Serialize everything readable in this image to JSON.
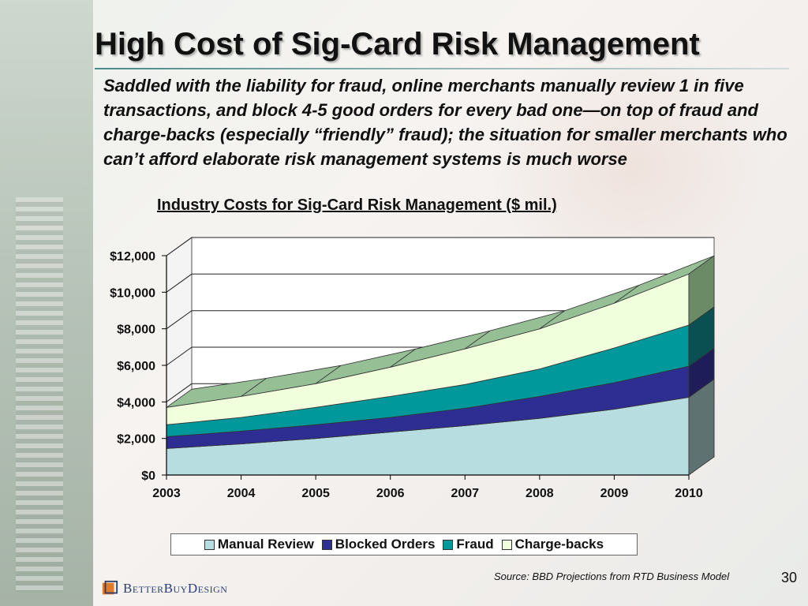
{
  "slide": {
    "title": "High Cost of Sig-Card Risk Management",
    "body": "Saddled with the liability for fraud, online merchants manually review 1 in five transactions, and block 4-5 good orders for every bad one—on top of fraud and charge-backs (especially “friendly” fraud); the situation for smaller merchants who can’t afford elaborate risk management systems is much worse",
    "source": "Source: BBD Projections from RTD Business Model",
    "page_number": "30",
    "logo_text": "BetterBuyDesign"
  },
  "chart_data": {
    "type": "area",
    "stacked": true,
    "three_d": true,
    "title": "Industry Costs for Sig-Card Risk Management ($ mil.)",
    "categories": [
      "2003",
      "2004",
      "2005",
      "2006",
      "2007",
      "2008",
      "2009",
      "2010"
    ],
    "ylim": [
      0,
      12000
    ],
    "yticks": [
      0,
      2000,
      4000,
      6000,
      8000,
      10000,
      12000
    ],
    "ytick_labels": [
      "$0",
      "$2,000",
      "$4,000",
      "$6,000",
      "$8,000",
      "$10,000",
      "$12,000"
    ],
    "grid": true,
    "legend_position": "bottom",
    "series": [
      {
        "name": "Manual Review",
        "color": "#b8dde0",
        "side_color": "#5f7272",
        "values": [
          1450,
          1700,
          2000,
          2350,
          2700,
          3100,
          3600,
          4250
        ]
      },
      {
        "name": "Blocked Orders",
        "color": "#2e2d91",
        "side_color": "#1e1d5a",
        "values": [
          650,
          700,
          750,
          800,
          950,
          1200,
          1450,
          1700
        ]
      },
      {
        "name": "Fraud",
        "color": "#00989b",
        "side_color": "#0a4f52",
        "values": [
          650,
          750,
          950,
          1150,
          1300,
          1500,
          1900,
          2250
        ]
      },
      {
        "name": "Charge-backs",
        "color": "#f0ffdc",
        "side_color": "#6b8a66",
        "values": [
          950,
          1150,
          1300,
          1600,
          1950,
          2200,
          2450,
          2800
        ]
      }
    ],
    "top_color": "#96bf96",
    "wall_color": "#ffffff"
  }
}
